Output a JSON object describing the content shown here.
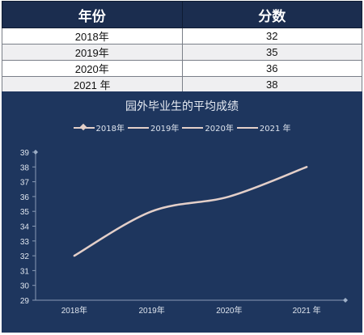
{
  "table": {
    "headers": [
      "年份",
      "分数"
    ],
    "rows": [
      {
        "year": "2018年",
        "score": "32"
      },
      {
        "year": "2019年",
        "score": "35"
      },
      {
        "year": "2020年",
        "score": "36"
      },
      {
        "year": "2021 年",
        "score": "38"
      }
    ]
  },
  "chart_data": {
    "type": "line",
    "title": "园外毕业生的平均成绩",
    "categories": [
      "2018年",
      "2019年",
      "2020年",
      "2021 年"
    ],
    "legend": [
      "2018年",
      "2019年",
      "2020年",
      "2021 年"
    ],
    "legend_position": "top",
    "series": [
      {
        "values": [
          32,
          35,
          36,
          38
        ]
      }
    ],
    "ylim": [
      29,
      39
    ],
    "yticks": [
      29,
      30,
      31,
      32,
      33,
      34,
      35,
      36,
      37,
      38,
      39
    ],
    "grid": false,
    "smooth": true,
    "line_color": "#e3cfc9",
    "background_color": "#1e365e",
    "header_color": "#1b2d4f"
  }
}
